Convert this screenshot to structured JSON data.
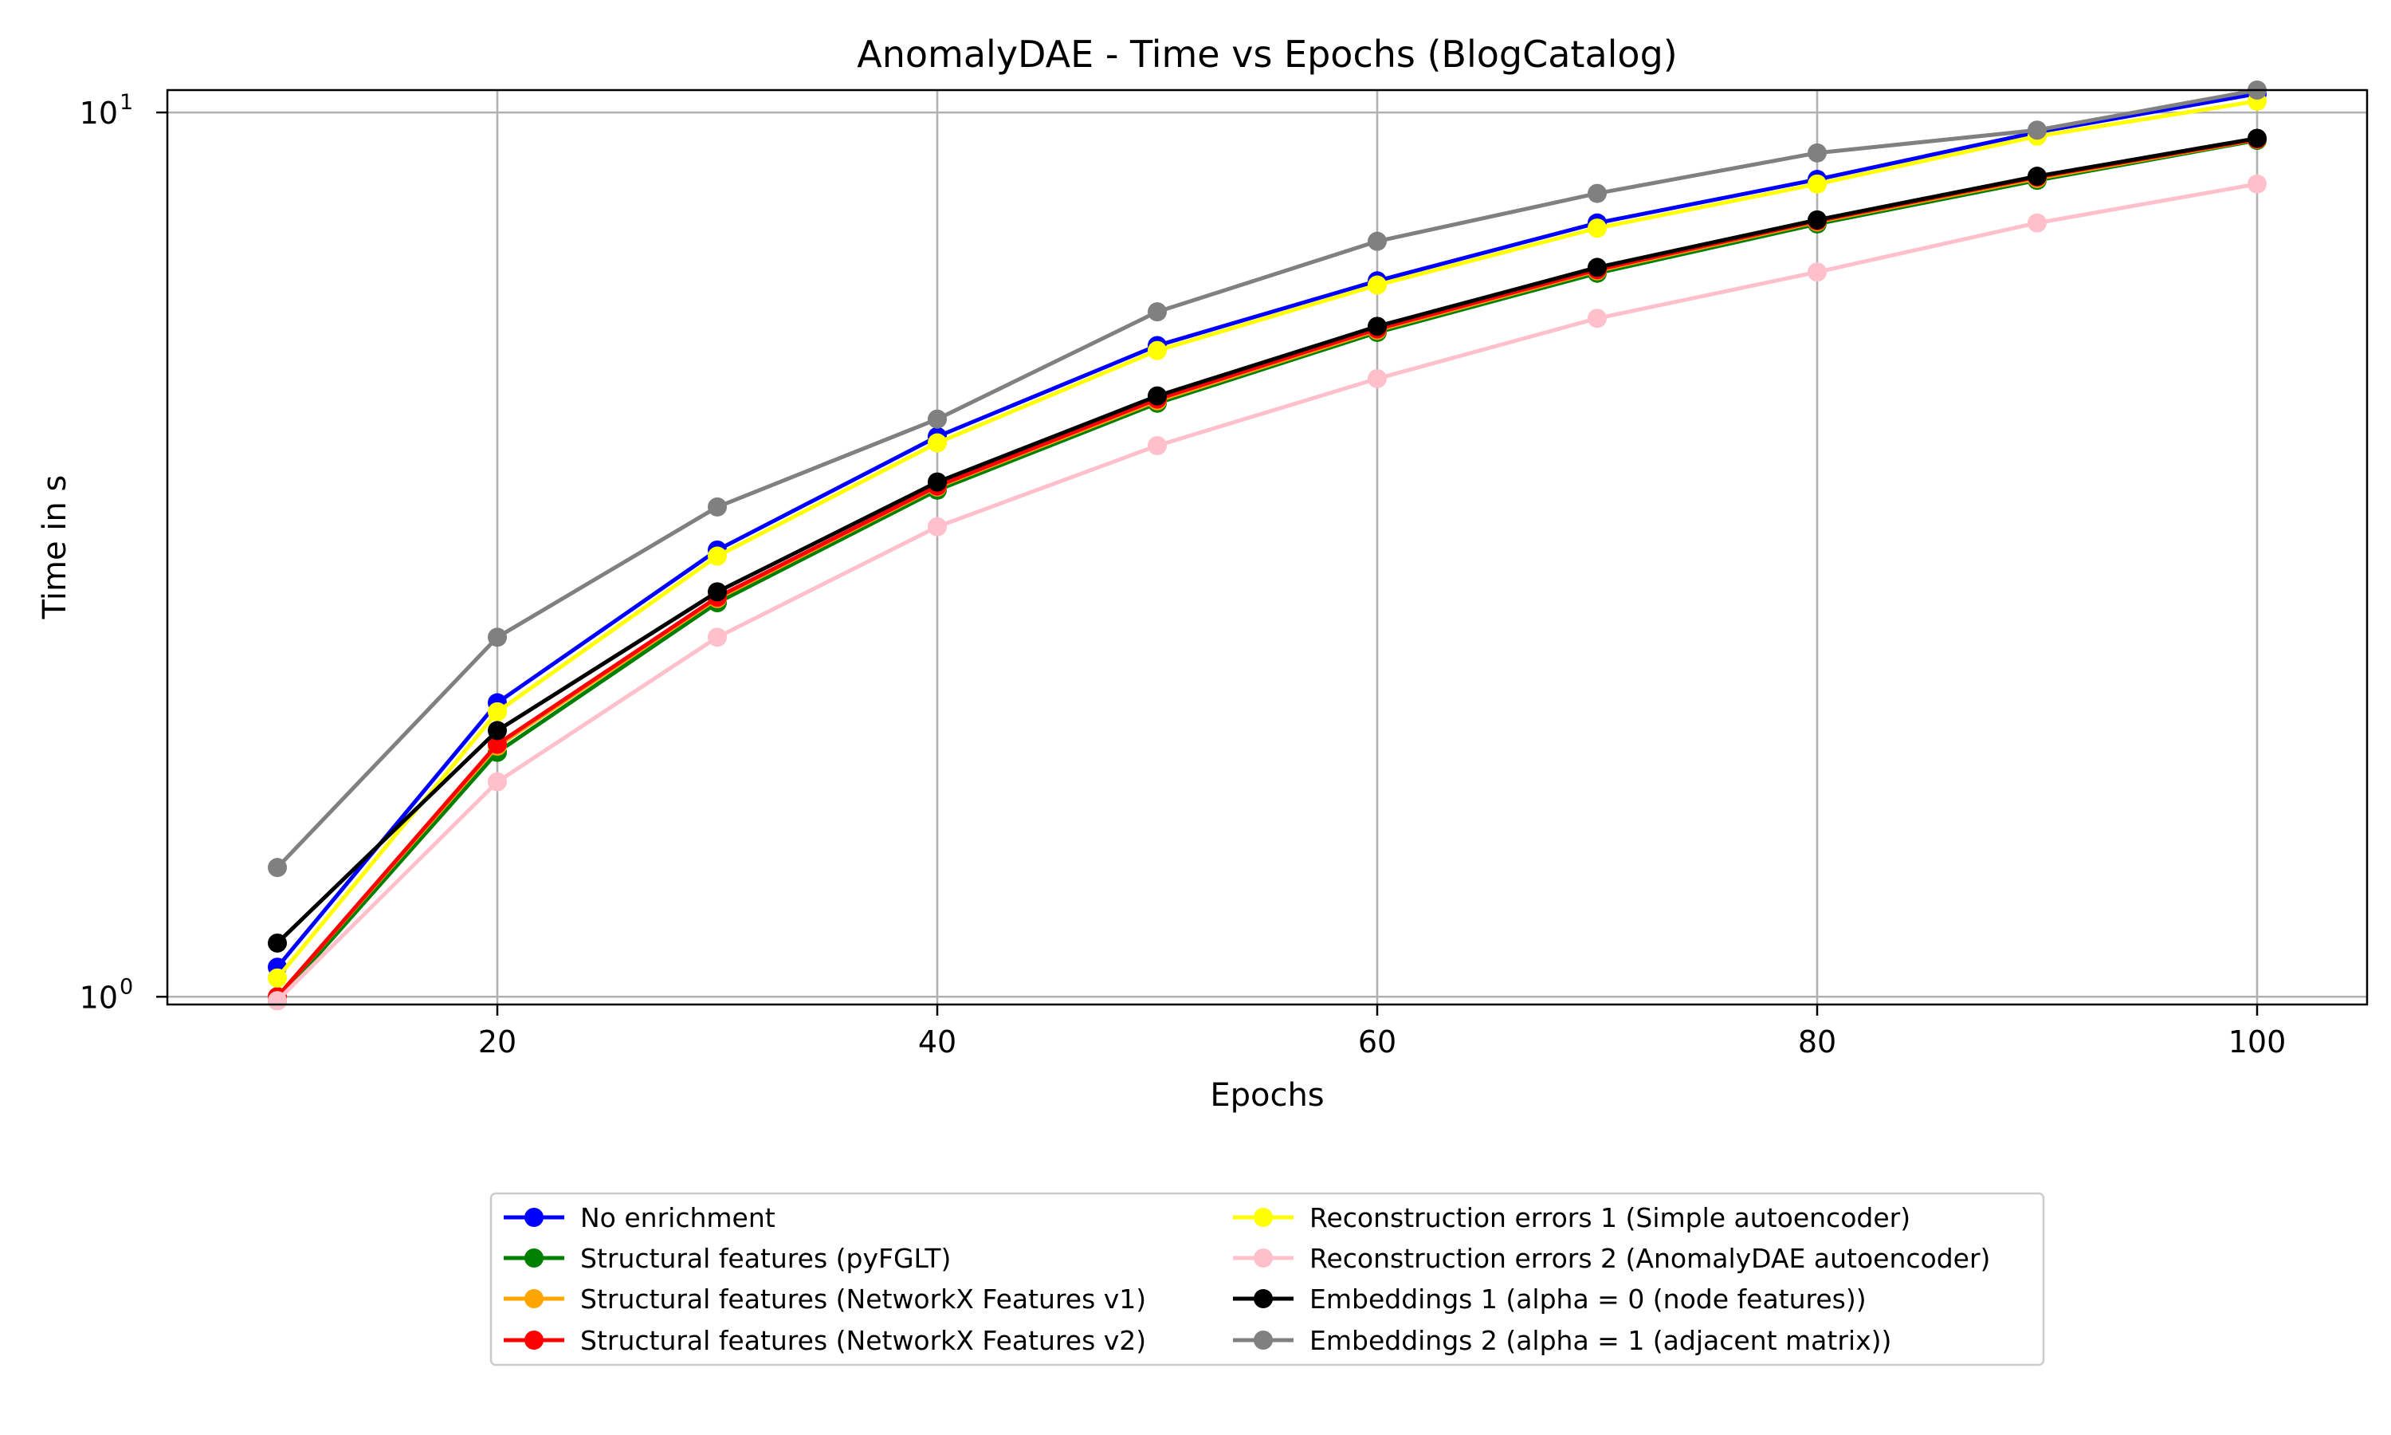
{
  "chart_data": {
    "type": "line",
    "title": "AnomalyDAE - Time vs Epochs (BlogCatalog)",
    "xlabel": "Epochs",
    "ylabel": "Time in s",
    "xlim": [
      5,
      105
    ],
    "ylim": [
      0.98,
      10.6
    ],
    "yscale": "log",
    "x_ticks": [
      20,
      40,
      60,
      80,
      100
    ],
    "y_ticks": [
      1,
      10
    ],
    "y_tick_labels": [
      {
        "base": "10",
        "exp": "0"
      },
      {
        "base": "10",
        "exp": "1"
      }
    ],
    "grid": true,
    "legend_position": "below",
    "x": [
      10,
      20,
      30,
      40,
      50,
      60,
      70,
      80,
      90,
      100
    ],
    "series": [
      {
        "name": "No enrichment",
        "color": "#0000ff",
        "values": [
          1.08,
          2.15,
          3.2,
          4.3,
          5.45,
          6.45,
          7.5,
          8.4,
          9.5,
          10.5
        ]
      },
      {
        "name": "Structural features (pyFGLT)",
        "color": "#008000",
        "values": [
          0.99,
          1.89,
          2.79,
          3.74,
          4.69,
          5.64,
          6.58,
          7.48,
          8.38,
          9.3
        ]
      },
      {
        "name": "Structural features (NetworkX Features v1)",
        "color": "#ffa500",
        "values": [
          1.0,
          1.92,
          2.82,
          3.77,
          4.72,
          5.67,
          6.62,
          7.52,
          8.42,
          9.32
        ]
      },
      {
        "name": "Structural features (NetworkX Features v2)",
        "color": "#ff0000",
        "values": [
          1.0,
          1.93,
          2.83,
          3.78,
          4.74,
          5.69,
          6.64,
          7.54,
          8.45,
          9.33
        ]
      },
      {
        "name": "Reconstruction errors 1 (Simple autoencoder)",
        "color": "#ffff00",
        "values": [
          1.05,
          2.1,
          3.15,
          4.23,
          5.38,
          6.38,
          7.4,
          8.3,
          9.4,
          10.3
        ]
      },
      {
        "name": "Reconstruction errors 2 (AnomalyDAE autoencoder)",
        "color": "#ffc0cb",
        "values": [
          0.99,
          1.75,
          2.55,
          3.4,
          4.2,
          5.0,
          5.85,
          6.6,
          7.5,
          8.3
        ]
      },
      {
        "name": "Embeddings 1 (alpha = 0 (node features))",
        "color": "#000000",
        "values": [
          1.15,
          2.0,
          2.87,
          3.82,
          4.78,
          5.73,
          6.68,
          7.56,
          8.47,
          9.35
        ]
      },
      {
        "name": "Embeddings 2 (alpha = 1 (adjacent matrix))",
        "color": "#808080",
        "values": [
          1.4,
          2.55,
          3.58,
          4.5,
          5.95,
          7.15,
          8.1,
          9.0,
          9.55,
          10.6
        ]
      }
    ]
  }
}
